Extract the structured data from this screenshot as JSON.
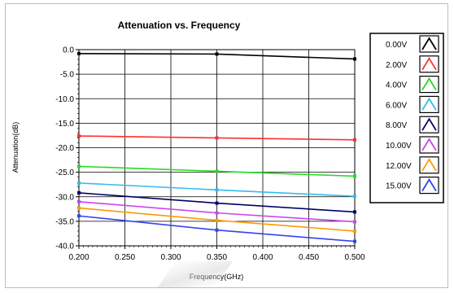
{
  "chart_data": {
    "type": "line",
    "title": "Attenuation vs. Frequency",
    "xlabel": "Frequency(GHz)",
    "ylabel": "Attenuation(dB)",
    "x": [
      0.2,
      0.35,
      0.5
    ],
    "xlim": [
      0.2,
      0.5
    ],
    "ylim": [
      -40.0,
      0.0
    ],
    "x_ticks": [
      "0.200",
      "0.250",
      "0.300",
      "0.350",
      "0.400",
      "0.450",
      "0.500"
    ],
    "y_ticks": [
      "0.0",
      "-5.0",
      "-10.0",
      "-15.0",
      "-20.0",
      "-25.0",
      "-30.0",
      "-35.0",
      "-40.0"
    ],
    "grid": true,
    "legend_position": "right",
    "series": [
      {
        "name": "0.00V",
        "color": "#000000",
        "values": [
          -0.8,
          -0.9,
          -1.9
        ]
      },
      {
        "name": "2.00V",
        "color": "#ff3030",
        "values": [
          -17.6,
          -18.0,
          -18.4
        ]
      },
      {
        "name": "4.00V",
        "color": "#22dd22",
        "values": [
          -23.8,
          -24.8,
          -25.8
        ]
      },
      {
        "name": "6.00V",
        "color": "#33bbee",
        "values": [
          -27.2,
          -28.6,
          -29.9
        ]
      },
      {
        "name": "8.00V",
        "color": "#000066",
        "values": [
          -29.2,
          -31.3,
          -33.1
        ]
      },
      {
        "name": "10.00V",
        "color": "#cc44ee",
        "values": [
          -31.0,
          -33.3,
          -35.1
        ]
      },
      {
        "name": "12.00V",
        "color": "#ff9900",
        "values": [
          -32.3,
          -34.8,
          -37.0
        ]
      },
      {
        "name": "15.00V",
        "color": "#3344ee",
        "values": [
          -33.9,
          -36.8,
          -39.1
        ]
      }
    ]
  }
}
